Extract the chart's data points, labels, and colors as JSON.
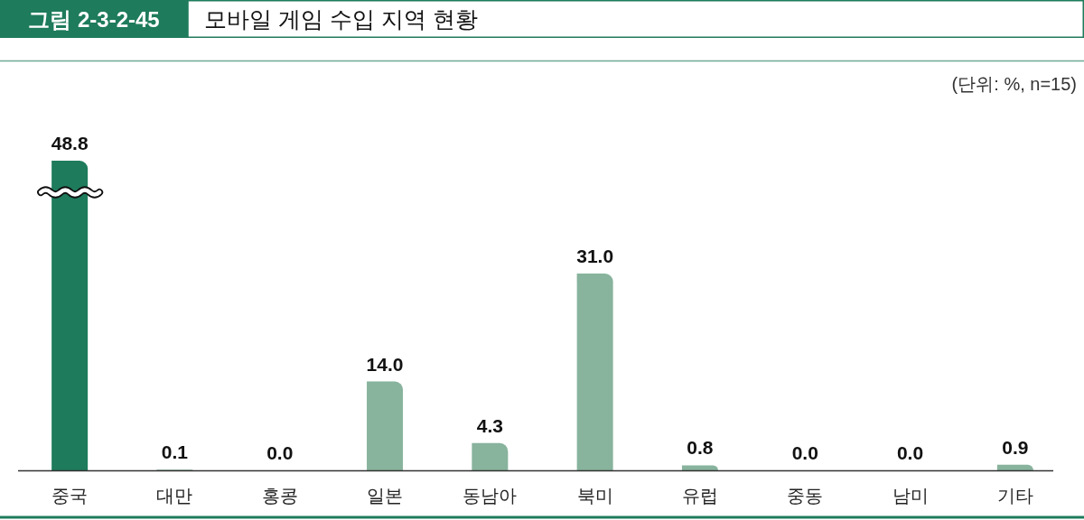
{
  "chart_data": {
    "type": "bar",
    "title": "모바일 게임 수입 지역 현황",
    "categories": [
      "중국",
      "대만",
      "홍콩",
      "일본",
      "동남아",
      "북미",
      "유럽",
      "중동",
      "남미",
      "기타"
    ],
    "values": [
      48.8,
      0.1,
      0.0,
      14.0,
      4.3,
      31.0,
      0.8,
      0.0,
      0.0,
      0.9
    ],
    "value_labels": [
      "48.8",
      "0.1",
      "0.0",
      "14.0",
      "4.3",
      "31.0",
      "0.8",
      "0.0",
      "0.0",
      "0.9"
    ],
    "colors": [
      "#1e7b5c",
      "#88b39d",
      "#88b39d",
      "#88b39d",
      "#88b39d",
      "#88b39d",
      "#88b39d",
      "#88b39d",
      "#88b39d",
      "#88b39d"
    ],
    "annotations": [
      "그림 2-3-2-45",
      "(단위: %, n=15)"
    ]
  }
}
